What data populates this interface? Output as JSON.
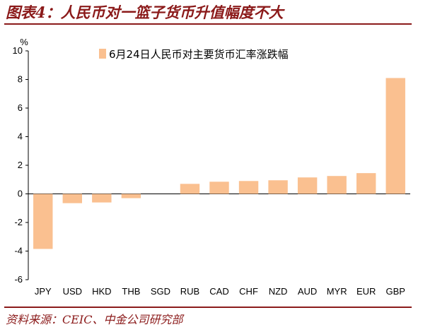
{
  "header": {
    "title": "图表4：人民币对一篮子货币升值幅度不大"
  },
  "footer": {
    "source": "资料来源：CEIC、中金公司研究部"
  },
  "colors": {
    "bar": "#fac090",
    "accent": "#8b1a1a",
    "axis": "#000000"
  },
  "chart_data": {
    "type": "bar",
    "title": "",
    "ylabel": "%",
    "xlabel": "",
    "ylim": [
      -6,
      10
    ],
    "yticks": [
      -6,
      -4,
      -2,
      0,
      2,
      4,
      6,
      8,
      10
    ],
    "ytick_labels": [
      "-6",
      "-4",
      "-2",
      "0",
      "2",
      "4",
      "6",
      "8",
      "10"
    ],
    "grid": false,
    "legend_position": "top-center",
    "categories": [
      "JPY",
      "USD",
      "HKD",
      "THB",
      "SGD",
      "RUB",
      "CAD",
      "CHF",
      "NZD",
      "AUD",
      "MYR",
      "EUR",
      "GBP"
    ],
    "series": [
      {
        "name": "6月24日人民币对主要货币汇率涨跌幅",
        "values": [
          -3.85,
          -0.65,
          -0.6,
          -0.3,
          0.0,
          0.7,
          0.85,
          0.9,
          0.95,
          1.15,
          1.25,
          1.45,
          8.1
        ]
      }
    ]
  }
}
